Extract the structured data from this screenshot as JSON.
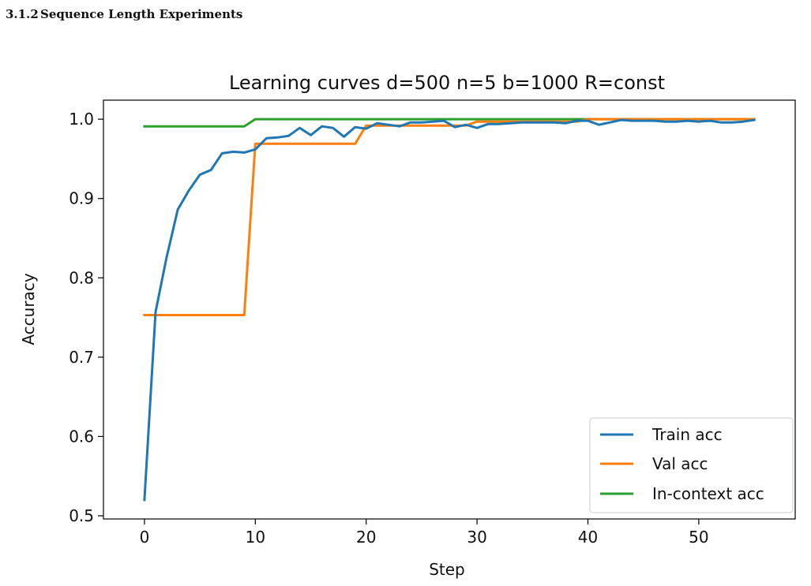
{
  "heading": {
    "number": "3.1.2",
    "text": "Sequence Length Experiments"
  },
  "colors": {
    "train": "#1f77b4",
    "val": "#ff7f0e",
    "incontext": "#2ca02c"
  },
  "chart_data": {
    "type": "line",
    "title": "Learning curves d=500 n=5 b=1000 R=const",
    "xlabel": "Step",
    "ylabel": "Accuracy",
    "xlim": [
      -3.7,
      58.7
    ],
    "ylim": [
      0.496,
      1.024
    ],
    "xticks": [
      0,
      10,
      20,
      30,
      40,
      50
    ],
    "yticks": [
      0.5,
      0.6,
      0.7,
      0.8,
      0.9,
      1.0
    ],
    "xtick_labels": [
      "0",
      "10",
      "20",
      "30",
      "40",
      "50"
    ],
    "ytick_labels": [
      "0.5",
      "0.6",
      "0.7",
      "0.8",
      "0.9",
      "1.0"
    ],
    "grid": false,
    "legend": "lower-right",
    "series": [
      {
        "name": "Train acc",
        "color": "#1f77b4",
        "x": [
          0,
          1,
          2,
          3,
          4,
          5,
          6,
          7,
          8,
          9,
          10,
          11,
          12,
          13,
          14,
          15,
          16,
          17,
          18,
          19,
          20,
          21,
          22,
          23,
          24,
          25,
          26,
          27,
          28,
          29,
          30,
          31,
          32,
          33,
          34,
          35,
          36,
          37,
          38,
          39,
          40,
          41,
          42,
          43,
          44,
          45,
          46,
          47,
          48,
          49,
          50,
          51,
          52,
          53,
          54,
          55
        ],
        "y": [
          0.52,
          0.757,
          0.826,
          0.886,
          0.91,
          0.93,
          0.936,
          0.957,
          0.959,
          0.958,
          0.962,
          0.976,
          0.977,
          0.979,
          0.989,
          0.98,
          0.991,
          0.989,
          0.978,
          0.99,
          0.988,
          0.995,
          0.993,
          0.991,
          0.996,
          0.996,
          0.997,
          0.998,
          0.99,
          0.993,
          0.989,
          0.994,
          0.994,
          0.995,
          0.996,
          0.996,
          0.996,
          0.996,
          0.995,
          0.998,
          0.998,
          0.993,
          0.996,
          0.999,
          0.998,
          0.998,
          0.998,
          0.997,
          0.997,
          0.998,
          0.997,
          0.998,
          0.996,
          0.996,
          0.997,
          0.999
        ]
      },
      {
        "name": "Val acc",
        "color": "#ff7f0e",
        "x": [
          0,
          9,
          10,
          19,
          20,
          29,
          30,
          39,
          40,
          55
        ],
        "y": [
          0.753,
          0.753,
          0.969,
          0.969,
          0.992,
          0.992,
          0.997,
          0.997,
          1.0,
          1.0
        ]
      },
      {
        "name": "In-context acc",
        "color": "#2ca02c",
        "x": [
          0,
          9,
          10,
          55
        ],
        "y": [
          0.991,
          0.991,
          1.0,
          1.0
        ]
      }
    ]
  }
}
